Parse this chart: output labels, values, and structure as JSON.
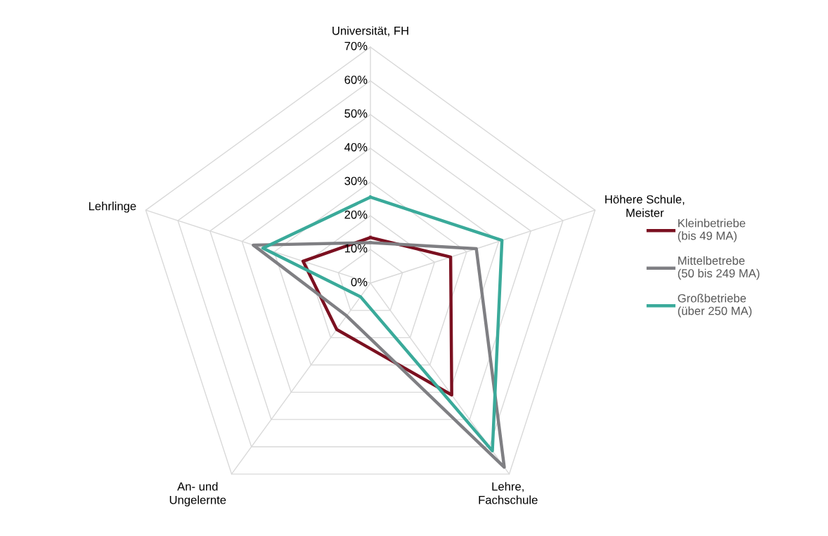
{
  "chart_data": {
    "type": "radar",
    "categories": [
      "Universität, FH",
      "Höhere Schule, Meister",
      "Lehre, Fachschule",
      "An- und Ungelernte",
      "Lehrlinge"
    ],
    "series": [
      {
        "name": "Kleinbetriebe (bis 49 MA)",
        "color": "#7b1020",
        "values": [
          13.5,
          25,
          41,
          17,
          21
        ]
      },
      {
        "name": "Mittelbetrebe (50 bis 249 MA)",
        "color": "#7f7f83",
        "values": [
          12,
          33,
          67.5,
          12,
          36.5
        ]
      },
      {
        "name": "Großbetriebe (über 250 MA)",
        "color": "#3aaa9a",
        "values": [
          25.5,
          41,
          61.5,
          5,
          33.5
        ]
      }
    ],
    "ylim": [
      0,
      70
    ],
    "yticks": [
      {
        "value": 0,
        "label": "0%"
      },
      {
        "value": 10,
        "label": "10%"
      },
      {
        "value": 20,
        "label": "20%"
      },
      {
        "value": 30,
        "label": "30%"
      },
      {
        "value": 40,
        "label": "40%"
      },
      {
        "value": 50,
        "label": "50%"
      },
      {
        "value": 60,
        "label": "60%"
      },
      {
        "value": 70,
        "label": "70%"
      }
    ],
    "grid": true,
    "legend": "right",
    "marker": "none",
    "line_style": "solid"
  }
}
